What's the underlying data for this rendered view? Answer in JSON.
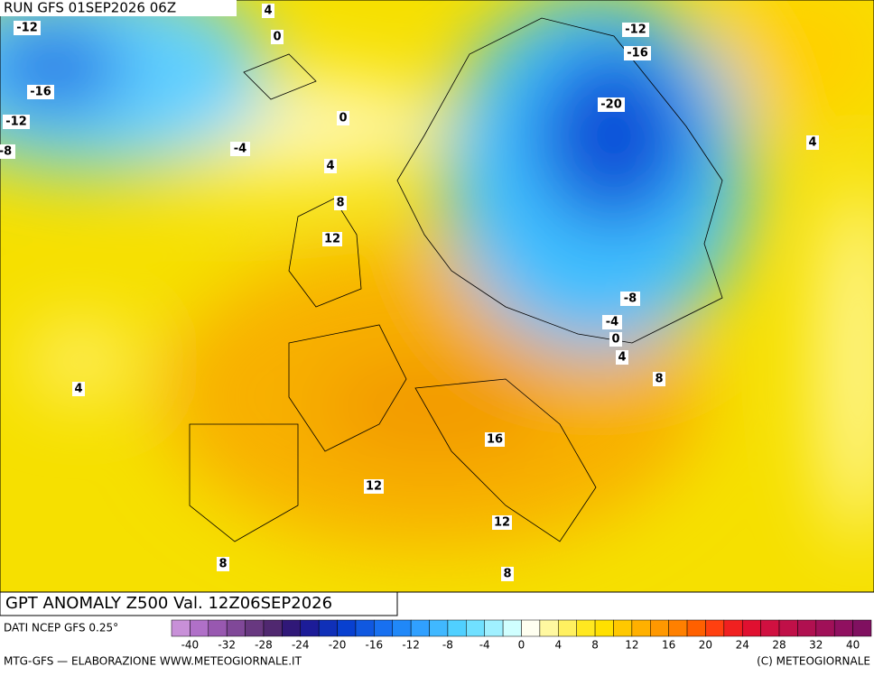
{
  "header": {
    "run": "RUN GFS 01SEP2026 06Z"
  },
  "map": {
    "contour_labels": [
      "4",
      "0",
      "-12",
      "-16",
      "-12",
      "-8",
      "0",
      "-4",
      "4",
      "8",
      "12",
      "-12",
      "-16",
      "-20",
      "4",
      "-8",
      "-4",
      "0",
      "4",
      "8",
      "4",
      "16",
      "12",
      "12",
      "8",
      "8"
    ]
  },
  "footer": {
    "title": "GPT ANOMALY Z500 Val. 12Z06SEP2026",
    "source": "DATI NCEP GFS 0.25°",
    "credit_left": "MTG-GFS — ELABORAZIONE WWW.METEOGIORNALE.IT",
    "credit_right": "(C) METEOGIORNALE"
  },
  "colorbar": {
    "ticks": [
      -40,
      -32,
      -28,
      -24,
      -20,
      -16,
      -12,
      -8,
      -4,
      0,
      4,
      8,
      12,
      16,
      20,
      24,
      28,
      32,
      40
    ],
    "colors": [
      "#c890d8",
      "#b070c8",
      "#9858b0",
      "#804898",
      "#683880",
      "#502870",
      "#301878",
      "#1c1c98",
      "#1030b8",
      "#0840d0",
      "#1058e0",
      "#1870f0",
      "#2088f8",
      "#30a0ff",
      "#40b8ff",
      "#50d0ff",
      "#70e0ff",
      "#a0f0ff",
      "#d0ffff",
      "#fffff0",
      "#fff8a0",
      "#fff060",
      "#ffe820",
      "#ffe000",
      "#ffc800",
      "#ffb000",
      "#ff9800",
      "#ff8000",
      "#ff6000",
      "#ff4010",
      "#f02020",
      "#e01030",
      "#d01040",
      "#c01048",
      "#b01050",
      "#a01058",
      "#901060",
      "#801060"
    ]
  }
}
